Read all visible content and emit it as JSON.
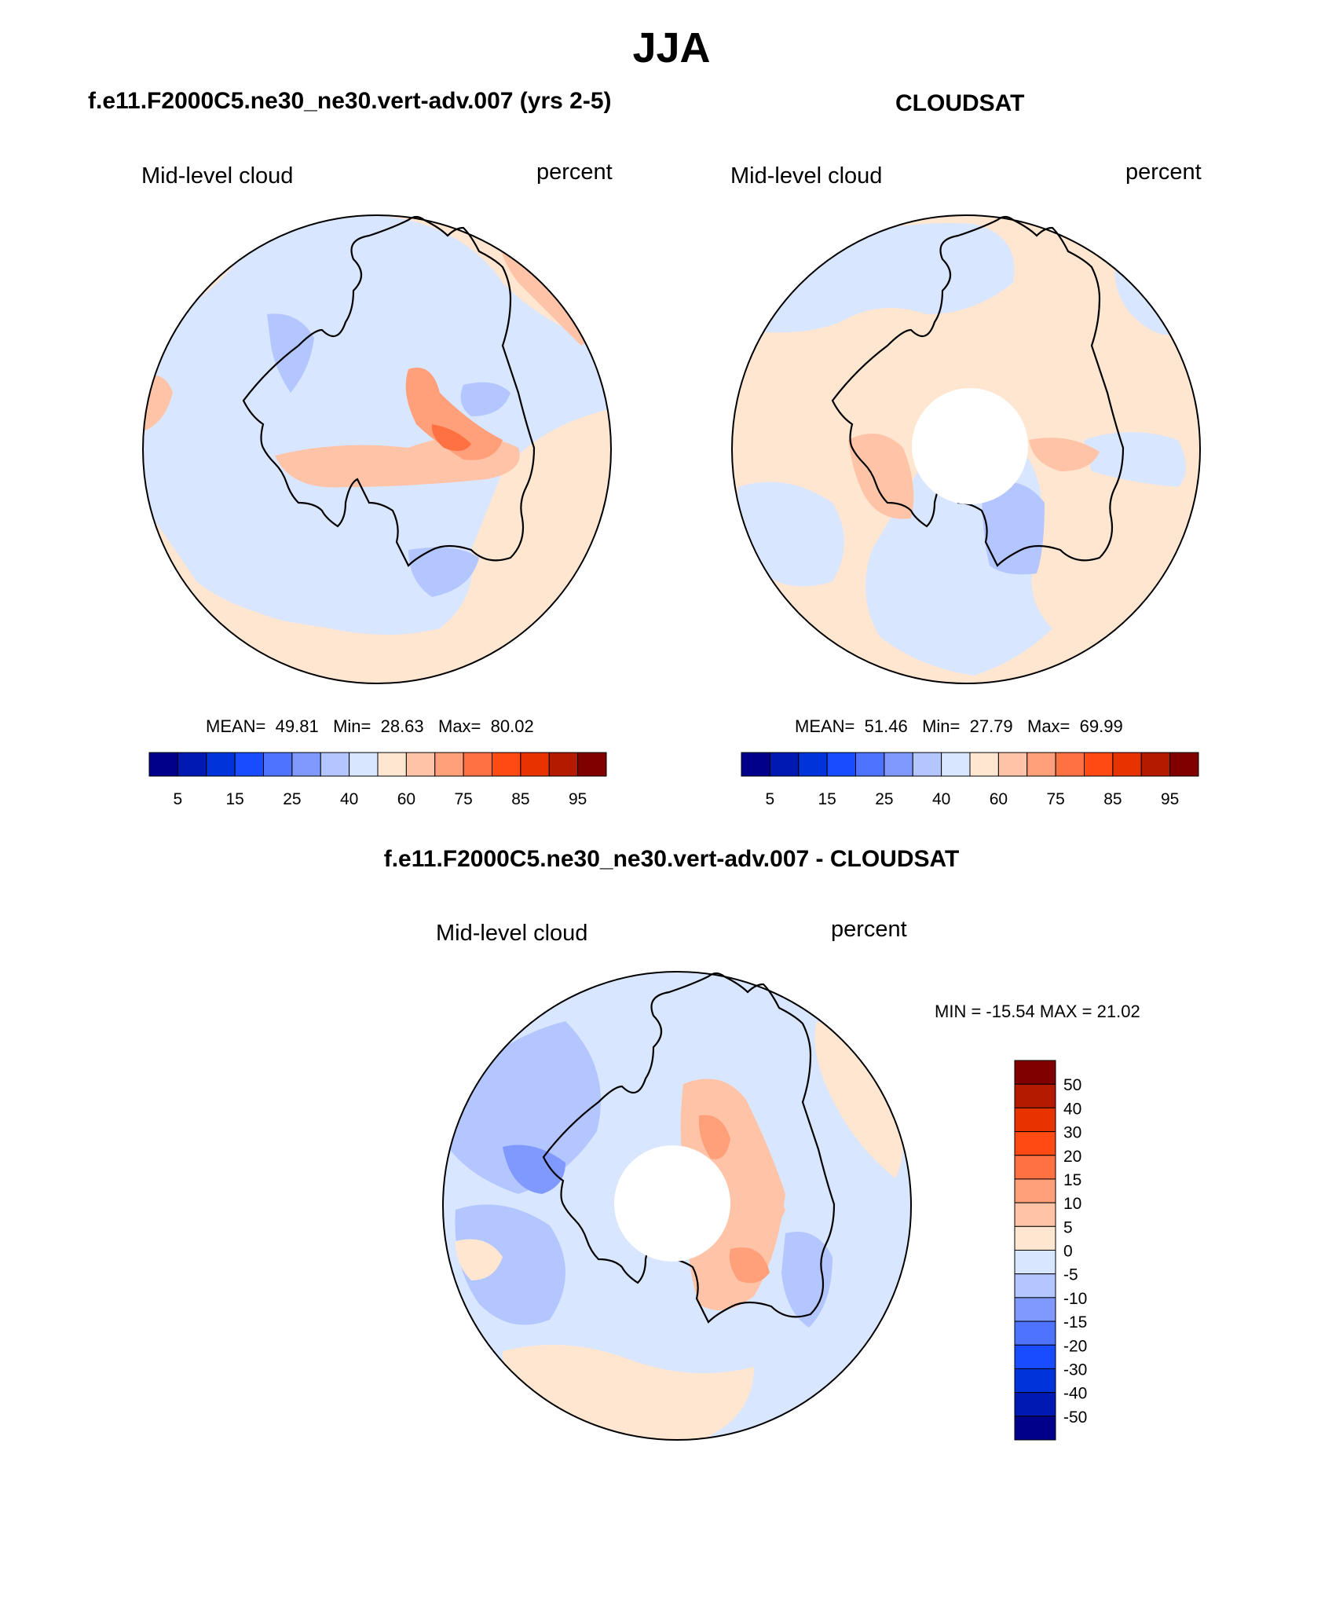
{
  "page_title": "JJA",
  "chart_data": [
    {
      "type": "heatmap",
      "projection": "south-polar-stereographic",
      "title": "f.e11.F2000C5.ne30_ne30.vert-adv.007 (yrs 2-5)",
      "left_label": "Mid-level cloud",
      "right_label": "percent",
      "stats": {
        "mean": "49.81",
        "min": "28.63",
        "max": "80.02"
      },
      "stats_labels": {
        "mean": "MEAN=",
        "min": "Min=",
        "max": "Max="
      },
      "colorbar": {
        "orientation": "horizontal",
        "tick_labels": [
          "5",
          "15",
          "25",
          "40",
          "60",
          "75",
          "85",
          "95"
        ],
        "colors": [
          "#00008b",
          "#0019b3",
          "#0033d9",
          "#1a4cff",
          "#4d73ff",
          "#8099ff",
          "#b3c6ff",
          "#d9e6ff",
          "#ffe6d1",
          "#ffc4a8",
          "#ffa07a",
          "#ff7043",
          "#ff4a14",
          "#e63300",
          "#b31a00",
          "#800000"
        ]
      },
      "field": {
        "background": "#ffe6d1",
        "patches": [
          {
            "color": "#d9e6ff"
          },
          {
            "color": "#d9e6ff"
          },
          {
            "color": "#d9e6ff"
          },
          {
            "color": "#b3c6ff"
          },
          {
            "color": "#b3c6ff"
          },
          {
            "color": "#b3c6ff"
          },
          {
            "color": "#ffc4a8"
          },
          {
            "color": "#ffa07a"
          },
          {
            "color": "#ff7043"
          },
          {
            "color": "#ffc4a8"
          },
          {
            "color": "#ffc4a8"
          }
        ]
      }
    },
    {
      "type": "heatmap",
      "projection": "south-polar-stereographic",
      "title": "CLOUDSAT",
      "left_label": "Mid-level cloud",
      "right_label": "percent",
      "stats": {
        "mean": "51.46",
        "min": "27.79",
        "max": "69.99"
      },
      "stats_labels": {
        "mean": "MEAN=",
        "min": "Min=",
        "max": "Max="
      },
      "colorbar": {
        "orientation": "horizontal",
        "tick_labels": [
          "5",
          "15",
          "25",
          "40",
          "60",
          "75",
          "85",
          "95"
        ],
        "colors": [
          "#00008b",
          "#0019b3",
          "#0033d9",
          "#1a4cff",
          "#4d73ff",
          "#8099ff",
          "#b3c6ff",
          "#d9e6ff",
          "#ffe6d1",
          "#ffc4a8",
          "#ffa07a",
          "#ff7043",
          "#ff4a14",
          "#e63300",
          "#b31a00",
          "#800000"
        ]
      },
      "field": {
        "background": "#ffe6d1",
        "patches": [
          {
            "color": "#d9e6ff"
          },
          {
            "color": "#d9e6ff"
          },
          {
            "color": "#d9e6ff"
          },
          {
            "color": "#d9e6ff"
          },
          {
            "color": "#b3c6ff"
          },
          {
            "color": "#ffc4a8"
          },
          {
            "color": "#ffc4a8"
          },
          {
            "color": "#d9e6ff"
          }
        ]
      },
      "missing_pole": true
    },
    {
      "type": "heatmap",
      "projection": "south-polar-stereographic",
      "title": "f.e11.F2000C5.ne30_ne30.vert-adv.007 - CLOUDSAT",
      "left_label": "Mid-level cloud",
      "right_label": "percent",
      "minmax_text": "MIN = -15.54 MAX =  21.02",
      "colorbar": {
        "orientation": "vertical",
        "tick_labels": [
          "50",
          "40",
          "30",
          "20",
          "15",
          "10",
          "5",
          "0",
          "-5",
          "-10",
          "-15",
          "-20",
          "-30",
          "-40",
          "-50"
        ],
        "colors": [
          "#800000",
          "#b31a00",
          "#e63300",
          "#ff4a14",
          "#ff7043",
          "#ffa07a",
          "#ffc4a8",
          "#ffe6d1",
          "#d9e6ff",
          "#b3c6ff",
          "#8099ff",
          "#4d73ff",
          "#1a4cff",
          "#0033d9",
          "#0019b3",
          "#00008b"
        ]
      },
      "field": {
        "background": "#d9e6ff",
        "patches": [
          {
            "color": "#b3c6ff"
          },
          {
            "color": "#b3c6ff"
          },
          {
            "color": "#8099ff"
          },
          {
            "color": "#ffe6d1"
          },
          {
            "color": "#ffe6d1"
          },
          {
            "color": "#ffe6d1"
          },
          {
            "color": "#ffc4a8"
          },
          {
            "color": "#ffa07a"
          },
          {
            "color": "#ffa07a"
          },
          {
            "color": "#ffc4a8"
          },
          {
            "color": "#b3c6ff"
          }
        ]
      },
      "missing_pole": true
    }
  ]
}
